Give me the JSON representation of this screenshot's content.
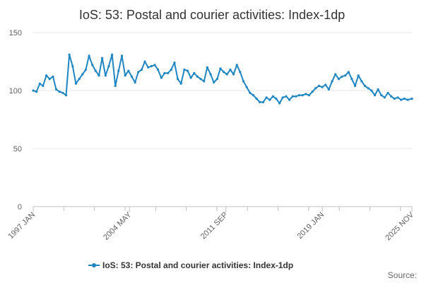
{
  "chart_data": {
    "type": "line",
    "title": "IoS: 53: Postal and courier activities: Index-1dp",
    "xlabel": "",
    "ylabel": "",
    "ylim": [
      0,
      150
    ],
    "yticks": [
      "0",
      "50",
      "100",
      "150"
    ],
    "xlim": [
      1997.0,
      2025.83
    ],
    "xticks": [
      {
        "label": "1997 JAN",
        "x": 1997.0
      },
      {
        "label": "2004 MAY",
        "x": 2004.33
      },
      {
        "label": "2011 SEP",
        "x": 2011.67
      },
      {
        "label": "2019 JAN",
        "x": 2019.0
      },
      {
        "label": "2025 NOV",
        "x": 2025.83
      }
    ],
    "grid": true,
    "legend_position": "bottom-center",
    "series": [
      {
        "name": "IoS: 53: Postal and courier activities: Index-1dp",
        "color": "#1f86c3",
        "marker": "circle",
        "x": [
          1997.0,
          1997.25,
          1997.5,
          1997.75,
          1998.0,
          1998.25,
          1998.5,
          1998.75,
          1999.0,
          1999.25,
          1999.5,
          1999.75,
          2000.0,
          2000.25,
          2000.5,
          2000.75,
          2001.0,
          2001.25,
          2001.5,
          2001.75,
          2002.0,
          2002.25,
          2002.5,
          2002.75,
          2003.0,
          2003.25,
          2003.5,
          2003.75,
          2004.0,
          2004.25,
          2004.5,
          2004.75,
          2005.0,
          2005.25,
          2005.5,
          2005.75,
          2006.0,
          2006.25,
          2006.5,
          2006.75,
          2007.0,
          2007.25,
          2007.5,
          2007.75,
          2008.0,
          2008.25,
          2008.5,
          2008.75,
          2009.0,
          2009.25,
          2009.5,
          2009.75,
          2010.0,
          2010.25,
          2010.5,
          2010.75,
          2011.0,
          2011.25,
          2011.5,
          2011.75,
          2012.0,
          2012.25,
          2012.5,
          2012.75,
          2013.0,
          2013.25,
          2013.5,
          2013.75,
          2014.0,
          2014.25,
          2014.5,
          2014.75,
          2015.0,
          2015.25,
          2015.5,
          2015.75,
          2016.0,
          2016.25,
          2016.5,
          2016.75,
          2017.0,
          2017.25,
          2017.5,
          2017.75,
          2018.0,
          2018.25,
          2018.5,
          2018.75,
          2019.0,
          2019.25,
          2019.5,
          2019.75,
          2020.0,
          2020.25,
          2020.5,
          2020.75,
          2021.0,
          2021.25,
          2021.5,
          2021.75,
          2022.0,
          2022.25,
          2022.5,
          2022.75,
          2023.0,
          2023.25,
          2023.5,
          2023.75,
          2024.0,
          2024.25,
          2024.5,
          2024.75,
          2025.0,
          2025.25,
          2025.5,
          2025.83
        ],
        "values": [
          100,
          99,
          106,
          104,
          113,
          110,
          112,
          101,
          99,
          98,
          96,
          131,
          121,
          106,
          110,
          114,
          118,
          130,
          122,
          117,
          113,
          128,
          113,
          121,
          131,
          104,
          117,
          130,
          113,
          117,
          112,
          107,
          116,
          118,
          125,
          120,
          121,
          122,
          118,
          111,
          115,
          115,
          118,
          124,
          110,
          106,
          118,
          117,
          111,
          115,
          112,
          110,
          108,
          120,
          114,
          107,
          110,
          119,
          116,
          114,
          118,
          114,
          122,
          116,
          108,
          103,
          98,
          96,
          93,
          90,
          90,
          94,
          92,
          95,
          93,
          89,
          94,
          95,
          92,
          95,
          95,
          96,
          96,
          97,
          96,
          99,
          102,
          104,
          103,
          105,
          101,
          108,
          114,
          110,
          112,
          113,
          116,
          110,
          104,
          113,
          108,
          104,
          102,
          100,
          96,
          101,
          96,
          94,
          98,
          95,
          93,
          94,
          92,
          93,
          92,
          93
        ]
      }
    ],
    "source_label": "Source:"
  }
}
